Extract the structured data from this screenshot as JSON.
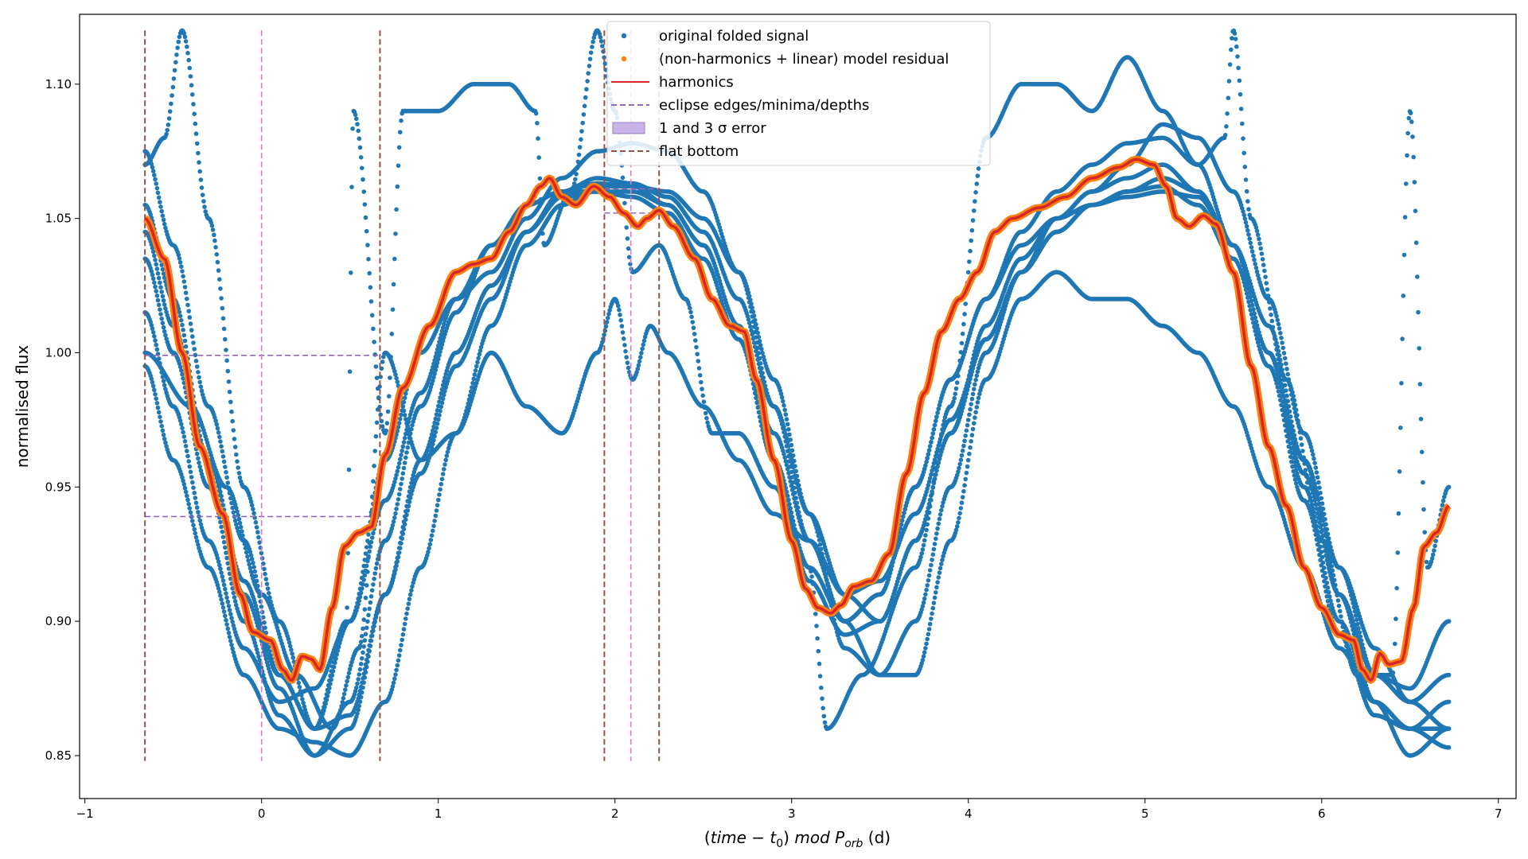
{
  "chart_data": {
    "type": "scatter",
    "xlabel_parts": [
      "(",
      "time",
      " − ",
      "t",
      "0",
      ") ",
      "mod P",
      "orb",
      " (d)"
    ],
    "ylabel": "normalised flux",
    "xlim": [
      -1.03,
      7.1
    ],
    "ylim": [
      0.834,
      1.126
    ],
    "xticks": [
      -1,
      0,
      1,
      2,
      3,
      4,
      5,
      6,
      7
    ],
    "xtick_labels": [
      "−1",
      "0",
      "1",
      "2",
      "3",
      "4",
      "5",
      "6",
      "7"
    ],
    "yticks": [
      0.85,
      0.9,
      0.95,
      1.0,
      1.05,
      1.1
    ],
    "ytick_labels": [
      "0.85",
      "0.90",
      "0.95",
      "1.00",
      "1.05",
      "1.10"
    ],
    "grid": false,
    "legend_position": "top-center",
    "legend": [
      {
        "label": "original folded signal",
        "marker": "dot",
        "color": "#1f77b4"
      },
      {
        "label": "(non-harmonics + linear) model residual",
        "marker": "dot",
        "color": "#ff7f0e"
      },
      {
        "label": "harmonics",
        "marker": "line",
        "color": "#d62728"
      },
      {
        "label": "eclipse edges/minima/depths",
        "marker": "dashed",
        "color": "#9467bd"
      },
      {
        "label": "1 and 3 σ error",
        "marker": "patch",
        "color": "#c8b3e6"
      },
      {
        "label": "flat bottom",
        "marker": "dashed",
        "color": "#8c564b"
      }
    ],
    "harmonics_model": {
      "color": "#d62728",
      "x": [
        -0.66,
        -0.55,
        -0.45,
        -0.35,
        -0.22,
        -0.12,
        -0.05,
        0.05,
        0.12,
        0.17,
        0.23,
        0.28,
        0.33,
        0.4,
        0.47,
        0.55,
        0.62,
        0.7,
        0.8,
        0.95,
        1.1,
        1.2,
        1.3,
        1.4,
        1.5,
        1.58,
        1.63,
        1.7,
        1.78,
        1.88,
        1.97,
        2.05,
        2.13,
        2.18,
        2.25,
        2.33,
        2.45,
        2.55,
        2.65,
        2.73,
        2.8,
        2.9,
        3.0,
        3.08,
        3.15,
        3.22,
        3.28,
        3.35,
        3.45,
        3.55,
        3.65,
        3.75,
        3.85,
        3.95,
        4.05,
        4.15,
        4.25,
        4.4,
        4.55,
        4.7,
        4.85,
        4.95,
        5.05,
        5.12,
        5.18,
        5.25,
        5.33,
        5.4,
        5.5,
        5.6,
        5.7,
        5.8,
        5.9,
        6.0,
        6.1,
        6.18,
        6.23,
        6.28,
        6.33,
        6.38,
        6.45,
        6.52,
        6.58,
        6.65,
        6.72
      ],
      "y": [
        1.05,
        1.035,
        1.0,
        0.965,
        0.94,
        0.91,
        0.896,
        0.893,
        0.882,
        0.878,
        0.887,
        0.886,
        0.882,
        0.905,
        0.928,
        0.933,
        0.935,
        0.962,
        0.987,
        1.01,
        1.03,
        1.033,
        1.035,
        1.045,
        1.055,
        1.062,
        1.065,
        1.058,
        1.055,
        1.062,
        1.058,
        1.052,
        1.047,
        1.05,
        1.053,
        1.047,
        1.035,
        1.02,
        1.01,
        1.008,
        0.99,
        0.96,
        0.93,
        0.912,
        0.905,
        0.903,
        0.906,
        0.913,
        0.915,
        0.925,
        0.955,
        0.985,
        1.008,
        1.02,
        1.03,
        1.045,
        1.05,
        1.054,
        1.058,
        1.065,
        1.069,
        1.072,
        1.07,
        1.062,
        1.05,
        1.047,
        1.051,
        1.048,
        1.03,
        0.995,
        0.965,
        0.943,
        0.92,
        0.905,
        0.895,
        0.893,
        0.882,
        0.878,
        0.888,
        0.884,
        0.885,
        0.905,
        0.928,
        0.933,
        0.943
      ]
    },
    "folded_signal": {
      "color": "#1f77b4",
      "series": [
        {
          "x": [
            -0.66,
            -0.5,
            -0.3,
            -0.1,
            0.1,
            0.3,
            0.5,
            0.7,
            0.9,
            1.1,
            1.3,
            1.5,
            1.7,
            1.9,
            2.1,
            2.3,
            2.5,
            2.7,
            2.9,
            3.1,
            3.3,
            3.5,
            3.7,
            3.9,
            4.1,
            4.3,
            4.5,
            4.7,
            4.9,
            5.1,
            5.3,
            5.5,
            5.7,
            5.9,
            6.1,
            6.3,
            6.5,
            6.72
          ],
          "y": [
            1.075,
            1.04,
            0.98,
            0.93,
            0.88,
            0.86,
            0.9,
            0.96,
            1.0,
            1.02,
            1.03,
            1.05,
            1.065,
            1.075,
            1.078,
            1.075,
            1.06,
            1.03,
            0.98,
            0.93,
            0.9,
            0.91,
            0.95,
            0.99,
            1.02,
            1.045,
            1.06,
            1.07,
            1.078,
            1.08,
            1.07,
            1.04,
            1.0,
            0.96,
            0.92,
            0.89,
            0.87,
            0.88
          ]
        },
        {
          "x": [
            -0.66,
            -0.5,
            -0.3,
            -0.1,
            0.1,
            0.3,
            0.5,
            0.7,
            0.9,
            1.1,
            1.3,
            1.5,
            1.7,
            1.9,
            2.1,
            2.3,
            2.5,
            2.7,
            2.9,
            3.1,
            3.3,
            3.5,
            3.7,
            3.9,
            4.1,
            4.3,
            4.5,
            4.7,
            4.9,
            5.1,
            5.3,
            5.5,
            5.7,
            5.9,
            6.1,
            6.3,
            6.5,
            6.72
          ],
          "y": [
            1.055,
            1.02,
            0.96,
            0.91,
            0.875,
            0.85,
            0.86,
            0.91,
            0.96,
            1.0,
            1.025,
            1.045,
            1.06,
            1.065,
            1.063,
            1.058,
            1.045,
            1.02,
            0.98,
            0.94,
            0.91,
            0.9,
            0.93,
            0.97,
            1.01,
            1.035,
            1.05,
            1.06,
            1.065,
            1.07,
            1.06,
            1.04,
            1.0,
            0.95,
            0.9,
            0.87,
            0.86,
            0.853
          ]
        },
        {
          "x": [
            -0.66,
            -0.5,
            -0.3,
            -0.1,
            0.1,
            0.3,
            0.5,
            0.7,
            0.9,
            1.1,
            1.3,
            1.5,
            1.7,
            1.9,
            2.1,
            2.3,
            2.5,
            2.7,
            2.9,
            3.1,
            3.3,
            3.5,
            3.7,
            3.9,
            4.1,
            4.3,
            4.5,
            4.7,
            4.9,
            5.1,
            5.3,
            5.5,
            5.7,
            5.9,
            6.1,
            6.3,
            6.5,
            6.72
          ],
          "y": [
            1.035,
            1.0,
            0.95,
            0.9,
            0.865,
            0.85,
            0.87,
            0.93,
            0.98,
            1.015,
            1.04,
            1.055,
            1.06,
            1.06,
            1.06,
            1.055,
            1.04,
            1.01,
            0.96,
            0.92,
            0.9,
            0.91,
            0.95,
            0.99,
            1.02,
            1.04,
            1.05,
            1.055,
            1.058,
            1.06,
            1.058,
            1.04,
            1.01,
            0.96,
            0.91,
            0.87,
            0.85,
            0.86
          ]
        },
        {
          "x": [
            -0.66,
            -0.5,
            -0.3,
            -0.1,
            0.1,
            0.3,
            0.5,
            0.7,
            0.9,
            1.1,
            1.3,
            1.5,
            1.7,
            1.9,
            2.1,
            2.3,
            2.5,
            2.7,
            2.9,
            3.1,
            3.3,
            3.5,
            3.7,
            3.9,
            4.1,
            4.3,
            4.5,
            4.7,
            4.9,
            5.1,
            5.3,
            5.5,
            5.7,
            5.9,
            6.1,
            6.3,
            6.5,
            6.72
          ],
          "y": [
            0.995,
            0.96,
            0.92,
            0.88,
            0.86,
            0.855,
            0.85,
            0.87,
            0.92,
            0.97,
            1.01,
            1.04,
            1.055,
            1.062,
            1.062,
            1.06,
            1.05,
            1.03,
            0.99,
            0.94,
            0.89,
            0.88,
            0.9,
            0.95,
            1.0,
            1.03,
            1.05,
            1.06,
            1.07,
            1.085,
            1.08,
            1.06,
            1.02,
            0.97,
            0.92,
            0.88,
            0.87,
            0.86
          ]
        },
        {
          "x": [
            -0.66,
            -0.5,
            -0.3,
            -0.1,
            0.1,
            0.3,
            0.5,
            0.7,
            0.9,
            1.1,
            1.3,
            1.5,
            1.7,
            1.9,
            2.1,
            2.3,
            2.5,
            2.7,
            2.9,
            3.1,
            3.3,
            3.5,
            3.7,
            3.9,
            4.1,
            4.3,
            4.5,
            4.7,
            4.9,
            5.1,
            5.3,
            5.5,
            5.7,
            5.9,
            6.1,
            6.3,
            6.5,
            6.72
          ],
          "y": [
            1.015,
            0.98,
            0.93,
            0.89,
            0.87,
            0.875,
            0.9,
            0.945,
            0.985,
            1.02,
            1.04,
            1.055,
            1.06,
            1.063,
            1.062,
            1.055,
            1.04,
            1.01,
            0.97,
            0.93,
            0.91,
            0.915,
            0.94,
            0.975,
            1.005,
            1.03,
            1.045,
            1.055,
            1.06,
            1.065,
            1.06,
            1.04,
            1.0,
            0.955,
            0.91,
            0.88,
            0.875,
            0.9
          ]
        },
        {
          "x": [
            -0.66,
            -0.55,
            -0.45,
            -0.3,
            -0.1,
            0.1,
            0.3,
            0.48,
            0.52,
            0.7,
            0.8,
            1.0,
            1.2,
            1.4,
            1.55,
            1.6,
            1.75,
            1.9,
            2.0,
            2.1,
            2.25,
            2.4,
            2.55,
            2.7,
            2.9,
            3.1,
            3.2,
            3.4,
            3.7,
            3.9,
            4.1,
            4.3,
            4.5,
            4.7,
            4.9,
            5.1,
            5.3,
            5.45,
            5.5,
            5.6,
            5.8,
            6.0,
            6.2,
            6.4,
            6.5,
            6.6,
            6.72
          ],
          "y": [
            1.07,
            1.08,
            1.12,
            1.05,
            0.95,
            0.9,
            0.86,
            0.9,
            1.09,
            0.97,
            1.09,
            1.09,
            1.1,
            1.1,
            1.09,
            1.04,
            1.06,
            1.12,
            1.09,
            1.03,
            1.04,
            1.02,
            0.97,
            0.97,
            0.95,
            0.92,
            0.86,
            0.88,
            0.92,
            0.98,
            1.08,
            1.1,
            1.1,
            1.09,
            1.11,
            1.09,
            1.07,
            1.08,
            1.12,
            1.05,
            0.99,
            0.93,
            0.88,
            0.88,
            1.09,
            0.92,
            0.95
          ]
        },
        {
          "x": [
            -0.66,
            -0.4,
            -0.2,
            0.0,
            0.2,
            0.4,
            0.55,
            0.7,
            0.9,
            1.1,
            1.3,
            1.5,
            1.7,
            1.9,
            2.0,
            2.1,
            2.2,
            2.3,
            2.5,
            2.7,
            2.9,
            3.1,
            3.3,
            3.5,
            3.7,
            3.9,
            4.1,
            4.3,
            4.5,
            4.7,
            4.9,
            5.1,
            5.3,
            5.5,
            5.7,
            5.9,
            6.1,
            6.3,
            6.5,
            6.72
          ],
          "y": [
            1.0,
            0.98,
            0.95,
            0.91,
            0.88,
            0.86,
            0.89,
            1.0,
            0.96,
            0.97,
            1.0,
            0.98,
            0.97,
            1.0,
            1.02,
            0.99,
            1.01,
            1.0,
            0.98,
            0.96,
            0.94,
            0.93,
            0.9,
            0.88,
            0.88,
            0.93,
            0.99,
            1.02,
            1.03,
            1.02,
            1.02,
            1.01,
            1.0,
            0.98,
            0.95,
            0.92,
            0.89,
            0.87,
            0.86,
            0.86
          ]
        },
        {
          "x": [
            -0.66,
            -0.5,
            -0.3,
            -0.1,
            0.1,
            0.3,
            0.5,
            0.7,
            0.9,
            1.1,
            1.3,
            1.5,
            1.7,
            1.9,
            2.1,
            2.3,
            2.5,
            2.7,
            2.9,
            3.1,
            3.3,
            3.5,
            3.7,
            3.9,
            4.1,
            4.3,
            4.5,
            4.7,
            4.9,
            5.1,
            5.3,
            5.5,
            5.7,
            5.9,
            6.1,
            6.3,
            6.5,
            6.72
          ],
          "y": [
            1.045,
            1.01,
            0.96,
            0.915,
            0.88,
            0.86,
            0.865,
            0.91,
            0.955,
            0.995,
            1.02,
            1.045,
            1.058,
            1.06,
            1.058,
            1.052,
            1.035,
            1.005,
            0.96,
            0.915,
            0.895,
            0.9,
            0.93,
            0.97,
            1.005,
            1.03,
            1.045,
            1.055,
            1.06,
            1.062,
            1.055,
            1.035,
            0.995,
            0.945,
            0.895,
            0.865,
            0.86,
            0.87
          ]
        }
      ]
    },
    "eclipse_lines": {
      "edge_color": "#8c564b",
      "mid_color": "#e377c2",
      "depth_color": "#9467bd",
      "primary_edges_x": [
        -0.66,
        0.67
      ],
      "primary_minimum_x": 0.0,
      "secondary_edges_x": [
        1.94,
        2.25
      ],
      "secondary_minimum_x": 2.09,
      "line_y_range": [
        0.848,
        1.12
      ],
      "depth_levels": [
        {
          "y": 0.999,
          "x_range": [
            -0.66,
            0.67
          ]
        },
        {
          "y": 0.939,
          "x_range": [
            -0.66,
            0.67
          ]
        },
        {
          "y": 1.052,
          "x_range": [
            1.94,
            2.25
          ]
        },
        {
          "y": 1.061,
          "x_range": [
            1.94,
            2.25
          ]
        }
      ]
    }
  }
}
